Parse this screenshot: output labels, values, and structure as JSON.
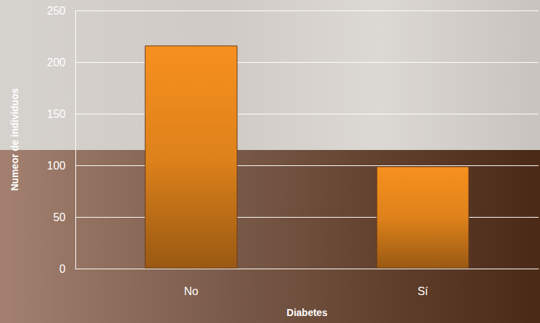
{
  "chart_data": {
    "type": "bar",
    "x_label": "Diabetes",
    "y_label": "Numeor de individuos",
    "categories": [
      "No",
      "Sí"
    ],
    "values": [
      216,
      99
    ],
    "color": "#f7901e",
    "ylim": [
      0,
      250
    ],
    "yticks": [
      0,
      50,
      100,
      150,
      200,
      250
    ],
    "grid": true
  }
}
